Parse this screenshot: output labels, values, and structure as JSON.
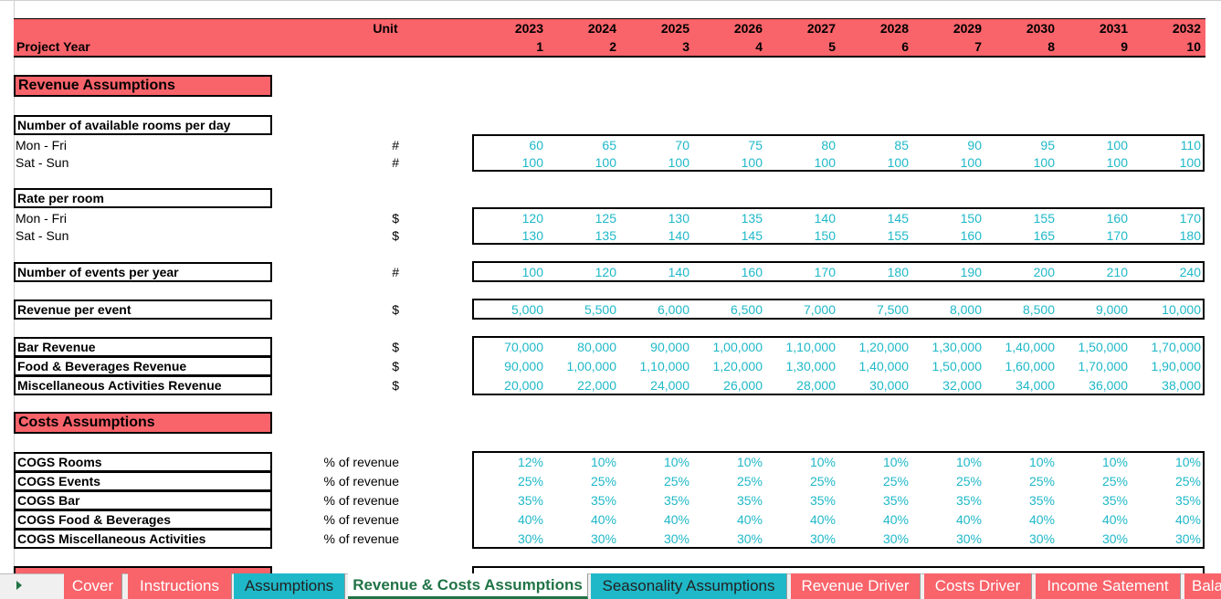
{
  "header": {
    "label": "Project Year",
    "unit": "Unit",
    "years": [
      "2023",
      "2024",
      "2025",
      "2026",
      "2027",
      "2028",
      "2029",
      "2030",
      "2031",
      "2032"
    ],
    "project_years": [
      "1",
      "2",
      "3",
      "4",
      "5",
      "6",
      "7",
      "8",
      "9",
      "10"
    ]
  },
  "revenue_assumptions": {
    "title": "Revenue Assumptions",
    "rooms": {
      "title": "Number of available rooms per day",
      "rows": [
        {
          "label": "Mon - Fri",
          "unit": "#",
          "values": [
            "60",
            "65",
            "70",
            "75",
            "80",
            "85",
            "90",
            "95",
            "100",
            "110"
          ]
        },
        {
          "label": "Sat - Sun",
          "unit": "#",
          "values": [
            "100",
            "100",
            "100",
            "100",
            "100",
            "100",
            "100",
            "100",
            "100",
            "100"
          ]
        }
      ]
    },
    "rate": {
      "title": "Rate per room",
      "rows": [
        {
          "label": "Mon - Fri",
          "unit": "$",
          "values": [
            "120",
            "125",
            "130",
            "135",
            "140",
            "145",
            "150",
            "155",
            "160",
            "170"
          ]
        },
        {
          "label": "Sat - Sun",
          "unit": "$",
          "values": [
            "130",
            "135",
            "140",
            "145",
            "150",
            "155",
            "160",
            "165",
            "170",
            "180"
          ]
        }
      ]
    },
    "events": [
      {
        "label": "Number of events per year",
        "unit": "#",
        "values": [
          "100",
          "120",
          "140",
          "160",
          "170",
          "180",
          "190",
          "200",
          "210",
          "240"
        ]
      }
    ],
    "revenue_per_event": [
      {
        "label": "Revenue per event",
        "unit": "$",
        "values": [
          "5,000",
          "5,500",
          "6,000",
          "6,500",
          "7,000",
          "7,500",
          "8,000",
          "8,500",
          "9,000",
          "10,000"
        ]
      }
    ],
    "other_revenue": [
      {
        "label": "Bar Revenue",
        "unit": "$",
        "values": [
          "70,000",
          "80,000",
          "90,000",
          "1,00,000",
          "1,10,000",
          "1,20,000",
          "1,30,000",
          "1,40,000",
          "1,50,000",
          "1,70,000"
        ]
      },
      {
        "label": "Food & Beverages Revenue",
        "unit": "$",
        "values": [
          "90,000",
          "1,00,000",
          "1,10,000",
          "1,20,000",
          "1,30,000",
          "1,40,000",
          "1,50,000",
          "1,60,000",
          "1,70,000",
          "1,90,000"
        ]
      },
      {
        "label": "Miscellaneous Activities Revenue",
        "unit": "$",
        "values": [
          "20,000",
          "22,000",
          "24,000",
          "26,000",
          "28,000",
          "30,000",
          "32,000",
          "34,000",
          "36,000",
          "38,000"
        ]
      }
    ]
  },
  "costs_assumptions": {
    "title": "Costs Assumptions",
    "cogs": [
      {
        "label": "COGS Rooms",
        "unit": "% of revenue",
        "values": [
          "12%",
          "10%",
          "10%",
          "10%",
          "10%",
          "10%",
          "10%",
          "10%",
          "10%",
          "10%"
        ]
      },
      {
        "label": "COGS Events",
        "unit": "% of revenue",
        "values": [
          "25%",
          "25%",
          "25%",
          "25%",
          "25%",
          "25%",
          "25%",
          "25%",
          "25%",
          "25%"
        ]
      },
      {
        "label": "COGS Bar",
        "unit": "% of revenue",
        "values": [
          "35%",
          "35%",
          "35%",
          "35%",
          "35%",
          "35%",
          "35%",
          "35%",
          "35%",
          "35%"
        ]
      },
      {
        "label": "COGS Food & Beverages",
        "unit": "% of revenue",
        "values": [
          "40%",
          "40%",
          "40%",
          "40%",
          "40%",
          "40%",
          "40%",
          "40%",
          "40%",
          "40%"
        ]
      },
      {
        "label": "COGS Miscellaneous Activities",
        "unit": "% of revenue",
        "values": [
          "30%",
          "30%",
          "30%",
          "30%",
          "30%",
          "30%",
          "30%",
          "30%",
          "30%",
          "30%"
        ]
      }
    ]
  },
  "tabs": [
    "Cover",
    "Instructions",
    "Assumptions",
    "Revenue & Costs Assumptions",
    "Seasonality Assumptions",
    "Revenue Driver",
    "Costs Driver",
    "Income Satement",
    "Bala"
  ]
}
